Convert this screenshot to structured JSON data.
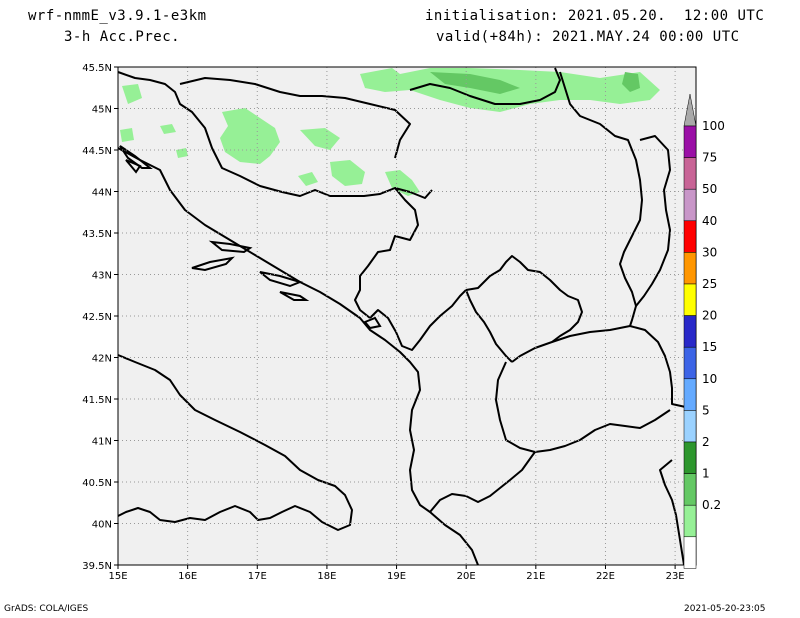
{
  "header": {
    "model": "wrf-nmmE_v3.9.1-e3km",
    "field": "3-h Acc.Prec.",
    "init": "initialisation: 2021.05.20.  12:00 UTC",
    "valid": "valid(+84h): 2021.MAY.24 00:00 UTC"
  },
  "map": {
    "lat_labels": [
      "45.5N",
      "45N",
      "44.5N",
      "44N",
      "43.5N",
      "43N",
      "42.5N",
      "42N",
      "41.5N",
      "41N",
      "40.5N",
      "40N",
      "39.5N"
    ],
    "lon_labels": [
      "15E",
      "16E",
      "17E",
      "18E",
      "19E",
      "20E",
      "21E",
      "22E",
      "23E"
    ],
    "lat_range": [
      39.5,
      45.5
    ],
    "lon_range": [
      15.0,
      23.3
    ],
    "background": "#f0f0f0",
    "grid": "dotted"
  },
  "colorbar": {
    "levels": [
      "100",
      "75",
      "50",
      "40",
      "30",
      "25",
      "20",
      "15",
      "10",
      "5",
      "2",
      "1",
      "0.2"
    ],
    "colors": [
      "#a9a9a9",
      "#9a0fa6",
      "#c86496",
      "#c896c8",
      "#ff0000",
      "#ff9600",
      "#ffff00",
      "#2828c8",
      "#3c64e6",
      "#64aaff",
      "#9bd2ff",
      "#2d962d",
      "#64c864",
      "#96f096",
      "#ffffff"
    ]
  },
  "footer": {
    "left": "GrADS: COLA/IGES",
    "right": "2021-05-20-23:05"
  }
}
